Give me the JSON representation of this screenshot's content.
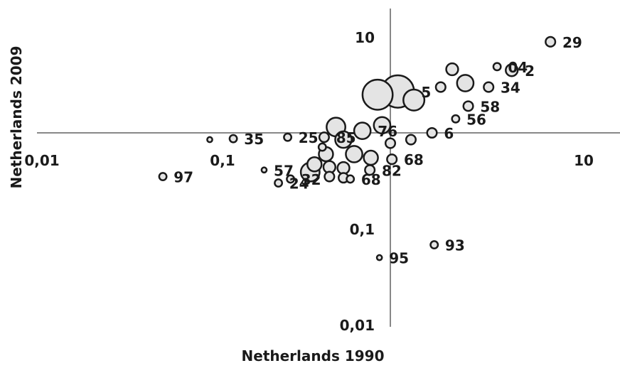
{
  "chart_data": {
    "type": "scatter",
    "xlabel": "Netherlands 1990",
    "ylabel": "Netherlands 2009",
    "scale": "log",
    "xlim": [
      0.01,
      30
    ],
    "ylim": [
      0.01,
      20
    ],
    "x_ticks": [
      {
        "value": 0.01,
        "label": "0,01"
      },
      {
        "value": 0.1,
        "label": "0,1"
      },
      {
        "value": 10,
        "label": "10"
      }
    ],
    "y_ticks": [
      {
        "value": 10,
        "label": "10"
      },
      {
        "value": 0.1,
        "label": "0,1"
      },
      {
        "value": 0.01,
        "label": "0,01"
      }
    ],
    "points": [
      {
        "label": "29",
        "x": 7.7,
        "y": 8.9,
        "size": 3
      },
      {
        "label": "2",
        "x": 4.7,
        "y": 4.5,
        "size": 4
      },
      {
        "label": "34",
        "x": 3.5,
        "y": 3.0,
        "size": 3
      },
      {
        "label": "04",
        "x": 3.9,
        "y": 4.9,
        "size": 2
      },
      {
        "label": "",
        "x": 2.2,
        "y": 4.6,
        "size": 4
      },
      {
        "label": "",
        "x": 2.6,
        "y": 3.3,
        "size": 6
      },
      {
        "label": "",
        "x": 1.9,
        "y": 3.0,
        "size": 3
      },
      {
        "label": "58",
        "x": 2.7,
        "y": 1.9,
        "size": 3
      },
      {
        "label": "56",
        "x": 2.3,
        "y": 1.4,
        "size": 2
      },
      {
        "label": "5",
        "x": 1.1,
        "y": 2.7,
        "size": 13
      },
      {
        "label": "",
        "x": 0.85,
        "y": 2.5,
        "size": 12
      },
      {
        "label": "",
        "x": 1.35,
        "y": 2.2,
        "size": 8
      },
      {
        "label": "6",
        "x": 1.7,
        "y": 1.0,
        "size": 3
      },
      {
        "label": "",
        "x": 1.3,
        "y": 0.85,
        "size": 3
      },
      {
        "label": "",
        "x": 1.0,
        "y": 0.78,
        "size": 3
      },
      {
        "label": "",
        "x": 0.9,
        "y": 1.2,
        "size": 6
      },
      {
        "label": "76",
        "x": 0.7,
        "y": 1.05,
        "size": 6
      },
      {
        "label": "",
        "x": 0.5,
        "y": 1.15,
        "size": 7
      },
      {
        "label": "",
        "x": 0.55,
        "y": 0.85,
        "size": 6
      },
      {
        "label": "85",
        "x": 0.43,
        "y": 0.9,
        "size": 3
      },
      {
        "label": "25",
        "x": 0.27,
        "y": 0.9,
        "size": 2
      },
      {
        "label": "",
        "x": 0.42,
        "y": 0.71,
        "size": 2
      },
      {
        "label": "35",
        "x": 0.135,
        "y": 0.87,
        "size": 2
      },
      {
        "label": "",
        "x": 0.1,
        "y": 0.85,
        "size": 1
      },
      {
        "label": "",
        "x": 0.44,
        "y": 0.6,
        "size": 5
      },
      {
        "label": "",
        "x": 0.63,
        "y": 0.6,
        "size": 6
      },
      {
        "label": "",
        "x": 0.78,
        "y": 0.55,
        "size": 5
      },
      {
        "label": "68",
        "x": 1.02,
        "y": 0.53,
        "size": 3
      },
      {
        "label": "",
        "x": 0.38,
        "y": 0.47,
        "size": 5
      },
      {
        "label": "",
        "x": 0.46,
        "y": 0.44,
        "size": 4
      },
      {
        "label": "",
        "x": 0.55,
        "y": 0.43,
        "size": 4
      },
      {
        "label": "82",
        "x": 0.77,
        "y": 0.41,
        "size": 3
      },
      {
        "label": "",
        "x": 0.36,
        "y": 0.39,
        "size": 7
      },
      {
        "label": "57",
        "x": 0.2,
        "y": 0.41,
        "size": 1
      },
      {
        "label": "",
        "x": 0.46,
        "y": 0.35,
        "size": 3
      },
      {
        "label": "",
        "x": 0.55,
        "y": 0.34,
        "size": 3
      },
      {
        "label": "68",
        "x": 0.6,
        "y": 0.33,
        "size": 2
      },
      {
        "label": "24",
        "x": 0.24,
        "y": 0.3,
        "size": 2
      },
      {
        "label": "32",
        "x": 0.28,
        "y": 0.33,
        "size": 2
      },
      {
        "label": "97",
        "x": 0.055,
        "y": 0.35,
        "size": 2
      },
      {
        "label": "93",
        "x": 1.75,
        "y": 0.068,
        "size": 2
      },
      {
        "label": "95",
        "x": 0.87,
        "y": 0.05,
        "size": 1
      }
    ]
  }
}
